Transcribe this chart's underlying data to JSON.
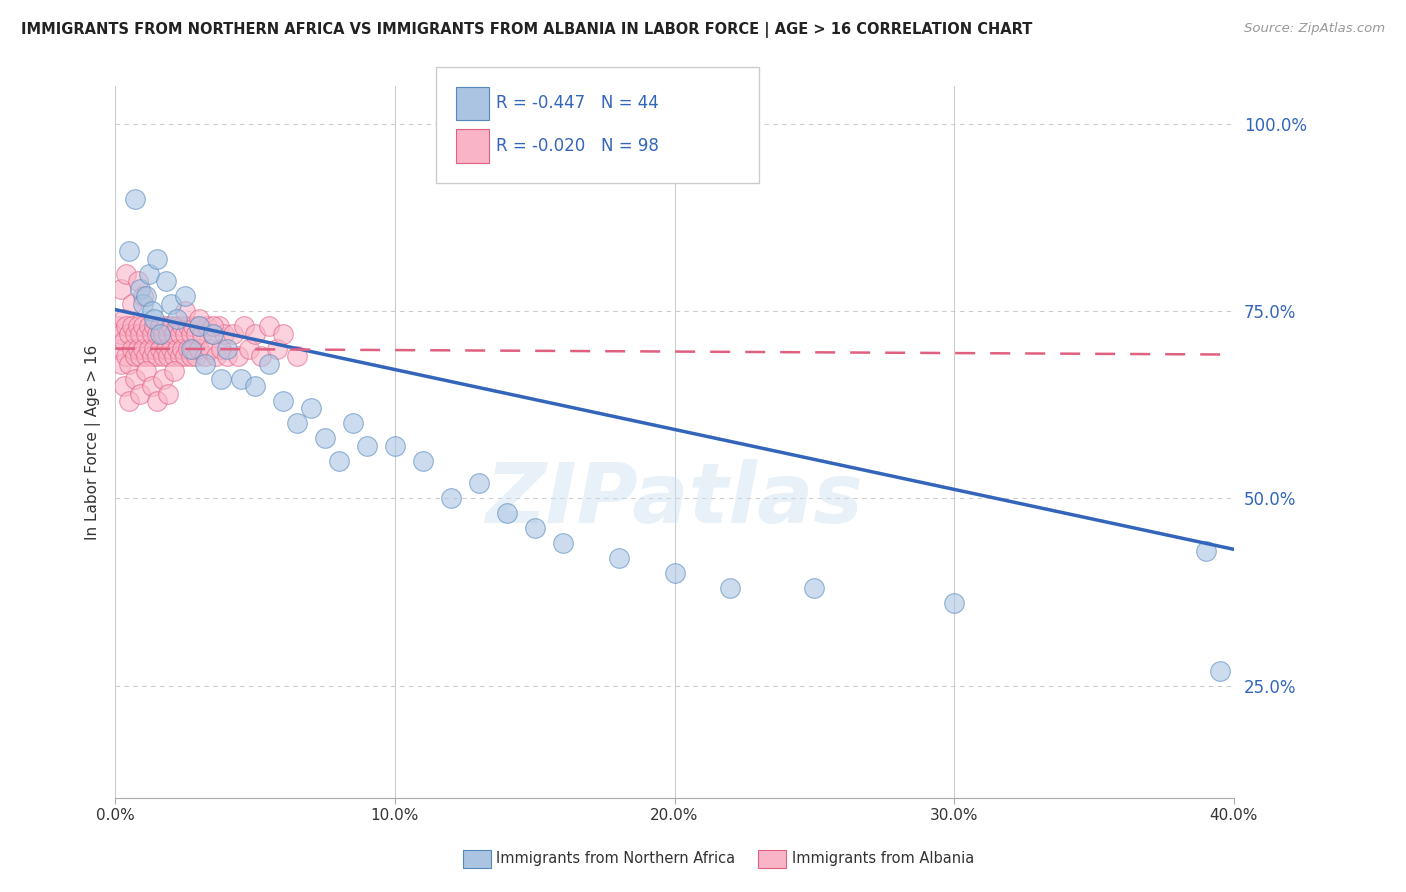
{
  "title": "IMMIGRANTS FROM NORTHERN AFRICA VS IMMIGRANTS FROM ALBANIA IN LABOR FORCE | AGE > 16 CORRELATION CHART",
  "source": "Source: ZipAtlas.com",
  "ylabel": "In Labor Force | Age > 16",
  "xlabel_blue": "Immigrants from Northern Africa",
  "xlabel_pink": "Immigrants from Albania",
  "xlim": [
    0.0,
    0.4
  ],
  "ylim": [
    0.1,
    1.05
  ],
  "yticks": [
    0.25,
    0.5,
    0.75,
    1.0
  ],
  "ytick_labels": [
    "25.0%",
    "50.0%",
    "75.0%",
    "100.0%"
  ],
  "xticks": [
    0.0,
    0.1,
    0.2,
    0.3,
    0.4
  ],
  "xtick_labels": [
    "0.0%",
    "10.0%",
    "20.0%",
    "30.0%",
    "40.0%"
  ],
  "blue_R": -0.447,
  "blue_N": 44,
  "pink_R": -0.02,
  "pink_N": 98,
  "blue_color": "#aac4e2",
  "blue_edge": "#5588bb",
  "pink_color": "#f9b4c8",
  "pink_edge": "#e06080",
  "blue_line_color": "#3366bb",
  "pink_line_color": "#e06080",
  "blue_scatter_x": [
    0.005,
    0.007,
    0.009,
    0.01,
    0.011,
    0.012,
    0.013,
    0.014,
    0.015,
    0.016,
    0.018,
    0.02,
    0.022,
    0.025,
    0.027,
    0.03,
    0.032,
    0.035,
    0.038,
    0.04,
    0.045,
    0.05,
    0.055,
    0.06,
    0.065,
    0.07,
    0.075,
    0.08,
    0.085,
    0.09,
    0.1,
    0.11,
    0.12,
    0.13,
    0.14,
    0.15,
    0.16,
    0.18,
    0.2,
    0.22,
    0.25,
    0.3,
    0.39,
    0.395
  ],
  "blue_scatter_y": [
    0.83,
    0.9,
    0.78,
    0.76,
    0.77,
    0.8,
    0.75,
    0.74,
    0.82,
    0.72,
    0.79,
    0.76,
    0.74,
    0.77,
    0.7,
    0.73,
    0.68,
    0.72,
    0.66,
    0.7,
    0.66,
    0.65,
    0.68,
    0.63,
    0.6,
    0.62,
    0.58,
    0.55,
    0.6,
    0.57,
    0.57,
    0.55,
    0.5,
    0.52,
    0.48,
    0.46,
    0.44,
    0.42,
    0.4,
    0.38,
    0.38,
    0.36,
    0.43,
    0.27
  ],
  "pink_scatter_x": [
    0.001,
    0.001,
    0.002,
    0.002,
    0.003,
    0.003,
    0.004,
    0.004,
    0.005,
    0.005,
    0.006,
    0.006,
    0.007,
    0.007,
    0.008,
    0.008,
    0.009,
    0.009,
    0.01,
    0.01,
    0.011,
    0.011,
    0.012,
    0.012,
    0.013,
    0.013,
    0.014,
    0.014,
    0.015,
    0.015,
    0.016,
    0.016,
    0.017,
    0.017,
    0.018,
    0.018,
    0.019,
    0.019,
    0.02,
    0.02,
    0.021,
    0.021,
    0.022,
    0.022,
    0.023,
    0.023,
    0.024,
    0.024,
    0.025,
    0.025,
    0.026,
    0.026,
    0.027,
    0.027,
    0.028,
    0.028,
    0.029,
    0.029,
    0.03,
    0.03,
    0.031,
    0.032,
    0.033,
    0.034,
    0.035,
    0.036,
    0.037,
    0.038,
    0.039,
    0.04,
    0.042,
    0.044,
    0.046,
    0.048,
    0.05,
    0.052,
    0.055,
    0.058,
    0.06,
    0.065,
    0.003,
    0.005,
    0.007,
    0.009,
    0.011,
    0.013,
    0.015,
    0.017,
    0.019,
    0.021,
    0.002,
    0.004,
    0.006,
    0.008,
    0.025,
    0.03,
    0.035,
    0.01
  ],
  "pink_scatter_y": [
    0.73,
    0.7,
    0.72,
    0.68,
    0.74,
    0.71,
    0.73,
    0.69,
    0.72,
    0.68,
    0.73,
    0.7,
    0.72,
    0.69,
    0.73,
    0.7,
    0.72,
    0.69,
    0.73,
    0.7,
    0.72,
    0.69,
    0.73,
    0.7,
    0.72,
    0.69,
    0.73,
    0.7,
    0.72,
    0.69,
    0.73,
    0.7,
    0.72,
    0.69,
    0.73,
    0.7,
    0.72,
    0.69,
    0.73,
    0.7,
    0.72,
    0.69,
    0.73,
    0.7,
    0.72,
    0.69,
    0.73,
    0.7,
    0.72,
    0.69,
    0.73,
    0.7,
    0.72,
    0.69,
    0.73,
    0.7,
    0.72,
    0.69,
    0.73,
    0.7,
    0.72,
    0.69,
    0.73,
    0.7,
    0.72,
    0.69,
    0.73,
    0.7,
    0.72,
    0.69,
    0.72,
    0.69,
    0.73,
    0.7,
    0.72,
    0.69,
    0.73,
    0.7,
    0.72,
    0.69,
    0.65,
    0.63,
    0.66,
    0.64,
    0.67,
    0.65,
    0.63,
    0.66,
    0.64,
    0.67,
    0.78,
    0.8,
    0.76,
    0.79,
    0.75,
    0.74,
    0.73,
    0.77
  ],
  "blue_trend_x": [
    0.0,
    0.4
  ],
  "blue_trend_y": [
    0.752,
    0.432
  ],
  "pink_trend_x": [
    0.0,
    0.4
  ],
  "pink_trend_y": [
    0.7,
    0.692
  ],
  "watermark": "ZIPatlas",
  "legend_R_color": "#3366bb",
  "background_color": "#ffffff",
  "grid_color": "#cccccc"
}
